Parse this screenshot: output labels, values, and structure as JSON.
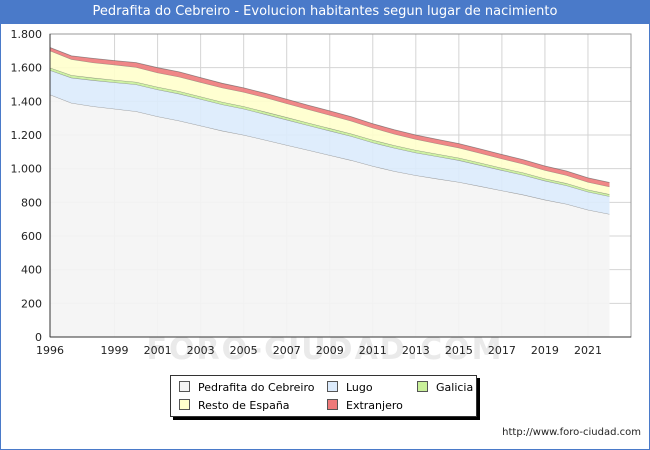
{
  "title": "Pedrafita do Cebreiro - Evolucion habitantes segun lugar de nacimiento",
  "watermark": "FORO-CIUDAD.COM",
  "source_url": "http://www.foro-ciudad.com",
  "chart_data": {
    "type": "area",
    "stacked": true,
    "x": [
      1996,
      1997,
      1998,
      1999,
      2000,
      2001,
      2002,
      2003,
      2004,
      2005,
      2006,
      2007,
      2008,
      2009,
      2010,
      2011,
      2012,
      2013,
      2014,
      2015,
      2016,
      2017,
      2018,
      2019,
      2020,
      2021,
      2022
    ],
    "series": [
      {
        "name": "Pedrafita do Cebreiro",
        "color": "#f4f4f4",
        "values": [
          1440,
          1390,
          1370,
          1355,
          1340,
          1310,
          1285,
          1255,
          1225,
          1200,
          1170,
          1140,
          1110,
          1080,
          1050,
          1015,
          985,
          960,
          940,
          920,
          895,
          870,
          845,
          815,
          790,
          755,
          730
        ]
      },
      {
        "name": "Lugo",
        "color": "#dcebfc",
        "values": [
          145,
          150,
          155,
          157,
          160,
          160,
          160,
          158,
          156,
          155,
          153,
          150,
          147,
          145,
          143,
          140,
          138,
          135,
          132,
          130,
          125,
          120,
          117,
          113,
          110,
          107,
          105
        ]
      },
      {
        "name": "Galicia",
        "color": "#c9f09a",
        "values": [
          15,
          15,
          15,
          15,
          15,
          15,
          15,
          15,
          15,
          15,
          15,
          15,
          15,
          15,
          15,
          15,
          15,
          15,
          15,
          14,
          14,
          14,
          14,
          13,
          13,
          13,
          13
        ]
      },
      {
        "name": "Resto de España",
        "color": "#ffffcc",
        "values": [
          100,
          95,
          90,
          90,
          88,
          85,
          85,
          85,
          85,
          85,
          85,
          82,
          80,
          78,
          75,
          72,
          68,
          65,
          62,
          60,
          58,
          55,
          52,
          50,
          48,
          45,
          45
        ]
      },
      {
        "name": "Extranjero",
        "color": "#ee7a7a",
        "values": [
          20,
          20,
          25,
          25,
          27,
          30,
          30,
          28,
          26,
          25,
          25,
          25,
          25,
          25,
          25,
          25,
          25,
          25,
          25,
          25,
          25,
          25,
          25,
          25,
          25,
          25,
          25
        ]
      }
    ],
    "xlim": [
      1996,
      2023
    ],
    "ylim": [
      0,
      1800
    ],
    "x_ticks": [
      1996,
      1999,
      2001,
      2003,
      2005,
      2007,
      2009,
      2011,
      2013,
      2015,
      2017,
      2019,
      2021
    ],
    "y_ticks": [
      0,
      200,
      400,
      600,
      800,
      1000,
      1200,
      1400,
      1600,
      1800
    ],
    "y_tick_labels": [
      "0",
      "200",
      "400",
      "600",
      "800",
      "1.000",
      "1.200",
      "1.400",
      "1.600",
      "1.800"
    ],
    "grid": true,
    "legend_position": "bottom"
  },
  "legend": [
    {
      "label": "Pedrafita do Cebreiro",
      "color": "#f4f4f4"
    },
    {
      "label": "Lugo",
      "color": "#dcebfc"
    },
    {
      "label": "Galicia",
      "color": "#c9f09a"
    },
    {
      "label": "Resto de España",
      "color": "#ffffcc"
    },
    {
      "label": "Extranjero",
      "color": "#ee7a7a"
    }
  ]
}
